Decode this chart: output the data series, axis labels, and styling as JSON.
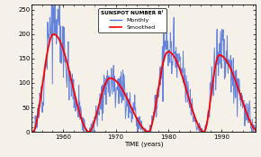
{
  "title": "SUNSPOT NUMBER Rᴵ",
  "xlabel": "TIME (years)",
  "ylabel": "",
  "xlim": [
    1954.0,
    1996.5
  ],
  "ylim": [
    0,
    260
  ],
  "yticks": [
    0,
    50,
    100,
    150,
    200,
    250
  ],
  "xticks": [
    1960,
    1970,
    1980,
    1990
  ],
  "monthly_color": "#5577dd",
  "smoothed_color": "red",
  "background": "#f5f0e8",
  "legend_title": "SUNSPOT NUMBER Rᴵ",
  "legend_monthly": "Monthly",
  "legend_smoothed": "Smoothed",
  "cycles": [
    {
      "start": 1954.3,
      "end": 1964.9,
      "peak": 1958.2,
      "amp": 200,
      "skew": 0.38
    },
    {
      "start": 1964.9,
      "end": 1976.2,
      "peak": 1968.9,
      "amp": 110,
      "skew": 0.42
    },
    {
      "start": 1976.2,
      "end": 1986.7,
      "peak": 1979.9,
      "amp": 164,
      "skew": 0.38
    },
    {
      "start": 1986.7,
      "end": 1997.0,
      "peak": 1989.6,
      "amp": 157,
      "skew": 0.35
    }
  ],
  "noise_seed": 12
}
